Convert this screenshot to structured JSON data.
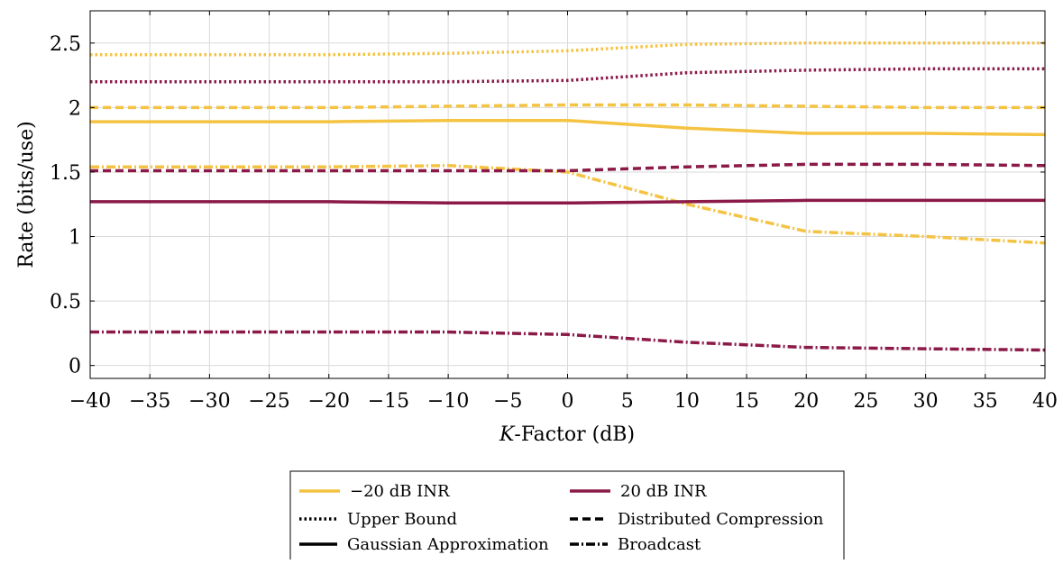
{
  "chart_data": {
    "type": "line",
    "xlabel_italic": "K",
    "xlabel_rest": "-Factor (dB)",
    "ylabel": "Rate (bits/use)",
    "xlim": [
      -40,
      40
    ],
    "ylim": [
      -0.1,
      2.75
    ],
    "x_ticks": [
      -40,
      -35,
      -30,
      -25,
      -20,
      -15,
      -10,
      -5,
      0,
      5,
      10,
      15,
      20,
      25,
      30,
      35,
      40
    ],
    "x_tick_labels": [
      "−40",
      "−35",
      "−30",
      "−25",
      "−20",
      "−15",
      "−10",
      "−5",
      "0",
      "5",
      "10",
      "15",
      "20",
      "25",
      "30",
      "35",
      "40"
    ],
    "y_ticks": [
      0,
      0.5,
      1,
      1.5,
      2,
      2.5
    ],
    "y_tick_labels": [
      "0",
      "0.5",
      "1",
      "1.5",
      "2",
      "2.5"
    ],
    "grid": true,
    "colors": {
      "low_inr": "#f5c342",
      "high_inr": "#8b1a48"
    },
    "x": [
      -40,
      -30,
      -20,
      -10,
      0,
      10,
      20,
      30,
      40
    ],
    "series": [
      {
        "inr": "low",
        "style": "upper",
        "values": [
          2.41,
          2.41,
          2.41,
          2.42,
          2.44,
          2.49,
          2.5,
          2.5,
          2.5
        ]
      },
      {
        "inr": "high",
        "style": "upper",
        "values": [
          2.2,
          2.2,
          2.2,
          2.2,
          2.21,
          2.27,
          2.29,
          2.3,
          2.3
        ]
      },
      {
        "inr": "low",
        "style": "distributed",
        "values": [
          2.0,
          2.0,
          2.0,
          2.01,
          2.02,
          2.02,
          2.01,
          2.0,
          2.0
        ]
      },
      {
        "inr": "low",
        "style": "gaussian",
        "values": [
          1.89,
          1.89,
          1.89,
          1.9,
          1.9,
          1.84,
          1.8,
          1.8,
          1.79
        ]
      },
      {
        "inr": "low",
        "style": "broadcast",
        "values": [
          1.54,
          1.54,
          1.54,
          1.55,
          1.5,
          1.25,
          1.04,
          1.0,
          0.95
        ]
      },
      {
        "inr": "high",
        "style": "distributed",
        "values": [
          1.51,
          1.51,
          1.51,
          1.51,
          1.51,
          1.54,
          1.56,
          1.56,
          1.55
        ]
      },
      {
        "inr": "high",
        "style": "gaussian",
        "values": [
          1.27,
          1.27,
          1.27,
          1.26,
          1.26,
          1.27,
          1.28,
          1.28,
          1.28
        ]
      },
      {
        "inr": "high",
        "style": "broadcast",
        "values": [
          0.26,
          0.26,
          0.26,
          0.26,
          0.24,
          0.18,
          0.14,
          0.13,
          0.12
        ]
      }
    ],
    "legend": {
      "placement": "bottom-center",
      "items": [
        {
          "key": "low_inr",
          "kind": "color",
          "label": "−20 dB INR"
        },
        {
          "key": "high_inr",
          "kind": "color",
          "label": "20 dB INR"
        },
        {
          "key": "upper",
          "kind": "style",
          "label": "Upper Bound"
        },
        {
          "key": "distributed",
          "kind": "style",
          "label": "Distributed Compression"
        },
        {
          "key": "gaussian",
          "kind": "style",
          "label": "Gaussian Approximation"
        },
        {
          "key": "broadcast",
          "kind": "style",
          "label": "Broadcast"
        }
      ]
    }
  }
}
